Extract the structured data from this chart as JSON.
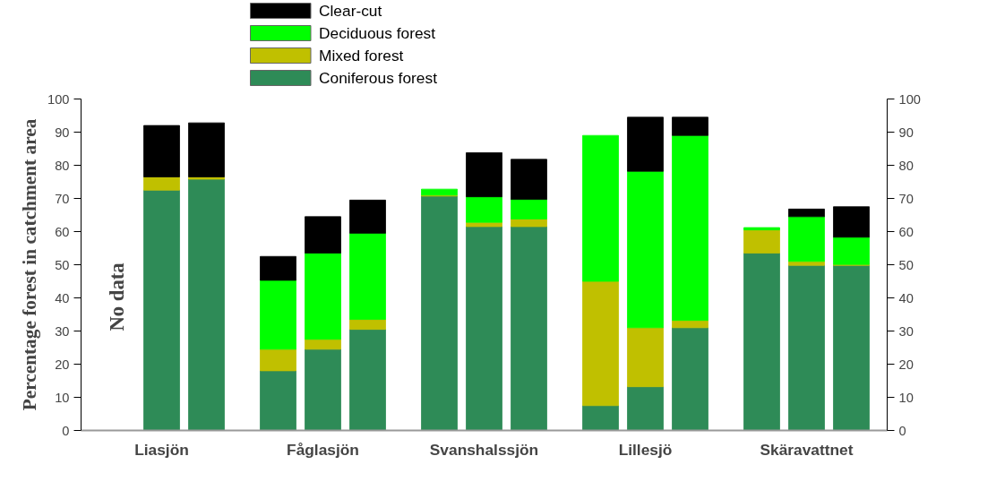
{
  "chart_data": {
    "type": "bar",
    "stacked": true,
    "ylabel": "Percentage forest in catchment area",
    "categories": [
      null,
      "Liasjön",
      null,
      null,
      "Fåglasjön",
      null,
      null,
      "Svanshalssjön",
      null,
      null,
      "Lillesjö",
      null,
      null,
      "Skäravattnet",
      null
    ],
    "series": [
      {
        "name": "Coniferous forest",
        "color": "#2e8b57",
        "values": [
          null,
          72.5,
          75.8,
          18,
          24.5,
          30.5,
          70.7,
          61.5,
          61.5,
          7.5,
          13.2,
          31,
          53.5,
          49.8,
          49.8
        ]
      },
      {
        "name": "Mixed forest",
        "color": "#c0c000",
        "values": [
          null,
          4,
          0.7,
          6.5,
          3,
          3,
          0.3,
          1.3,
          2.3,
          37.5,
          17.8,
          2.2,
          7,
          1.2,
          0.3
        ]
      },
      {
        "name": "Deciduous forest",
        "color": "#00ff00",
        "values": [
          null,
          null,
          null,
          20.8,
          26,
          26,
          1.8,
          7.7,
          5.9,
          44,
          47.2,
          55.8,
          0.7,
          13.5,
          8.2
        ]
      },
      {
        "name": "Clear-cut",
        "color": "#000000",
        "values": [
          null,
          15.5,
          16.3,
          7.2,
          11,
          10,
          null,
          13.3,
          12.1,
          null,
          16.3,
          5.5,
          null,
          2.3,
          9.2
        ]
      }
    ],
    "ylim": [
      0,
      100
    ],
    "yticks": [
      0,
      10,
      20,
      30,
      40,
      50,
      60,
      70,
      80,
      90,
      100
    ],
    "y2lim": [
      0,
      100
    ],
    "y2ticks": [
      0,
      10,
      20,
      30,
      40,
      50,
      60,
      70,
      80,
      90,
      100
    ],
    "annotations": [
      "No data"
    ],
    "legend": "top",
    "grid": false
  }
}
